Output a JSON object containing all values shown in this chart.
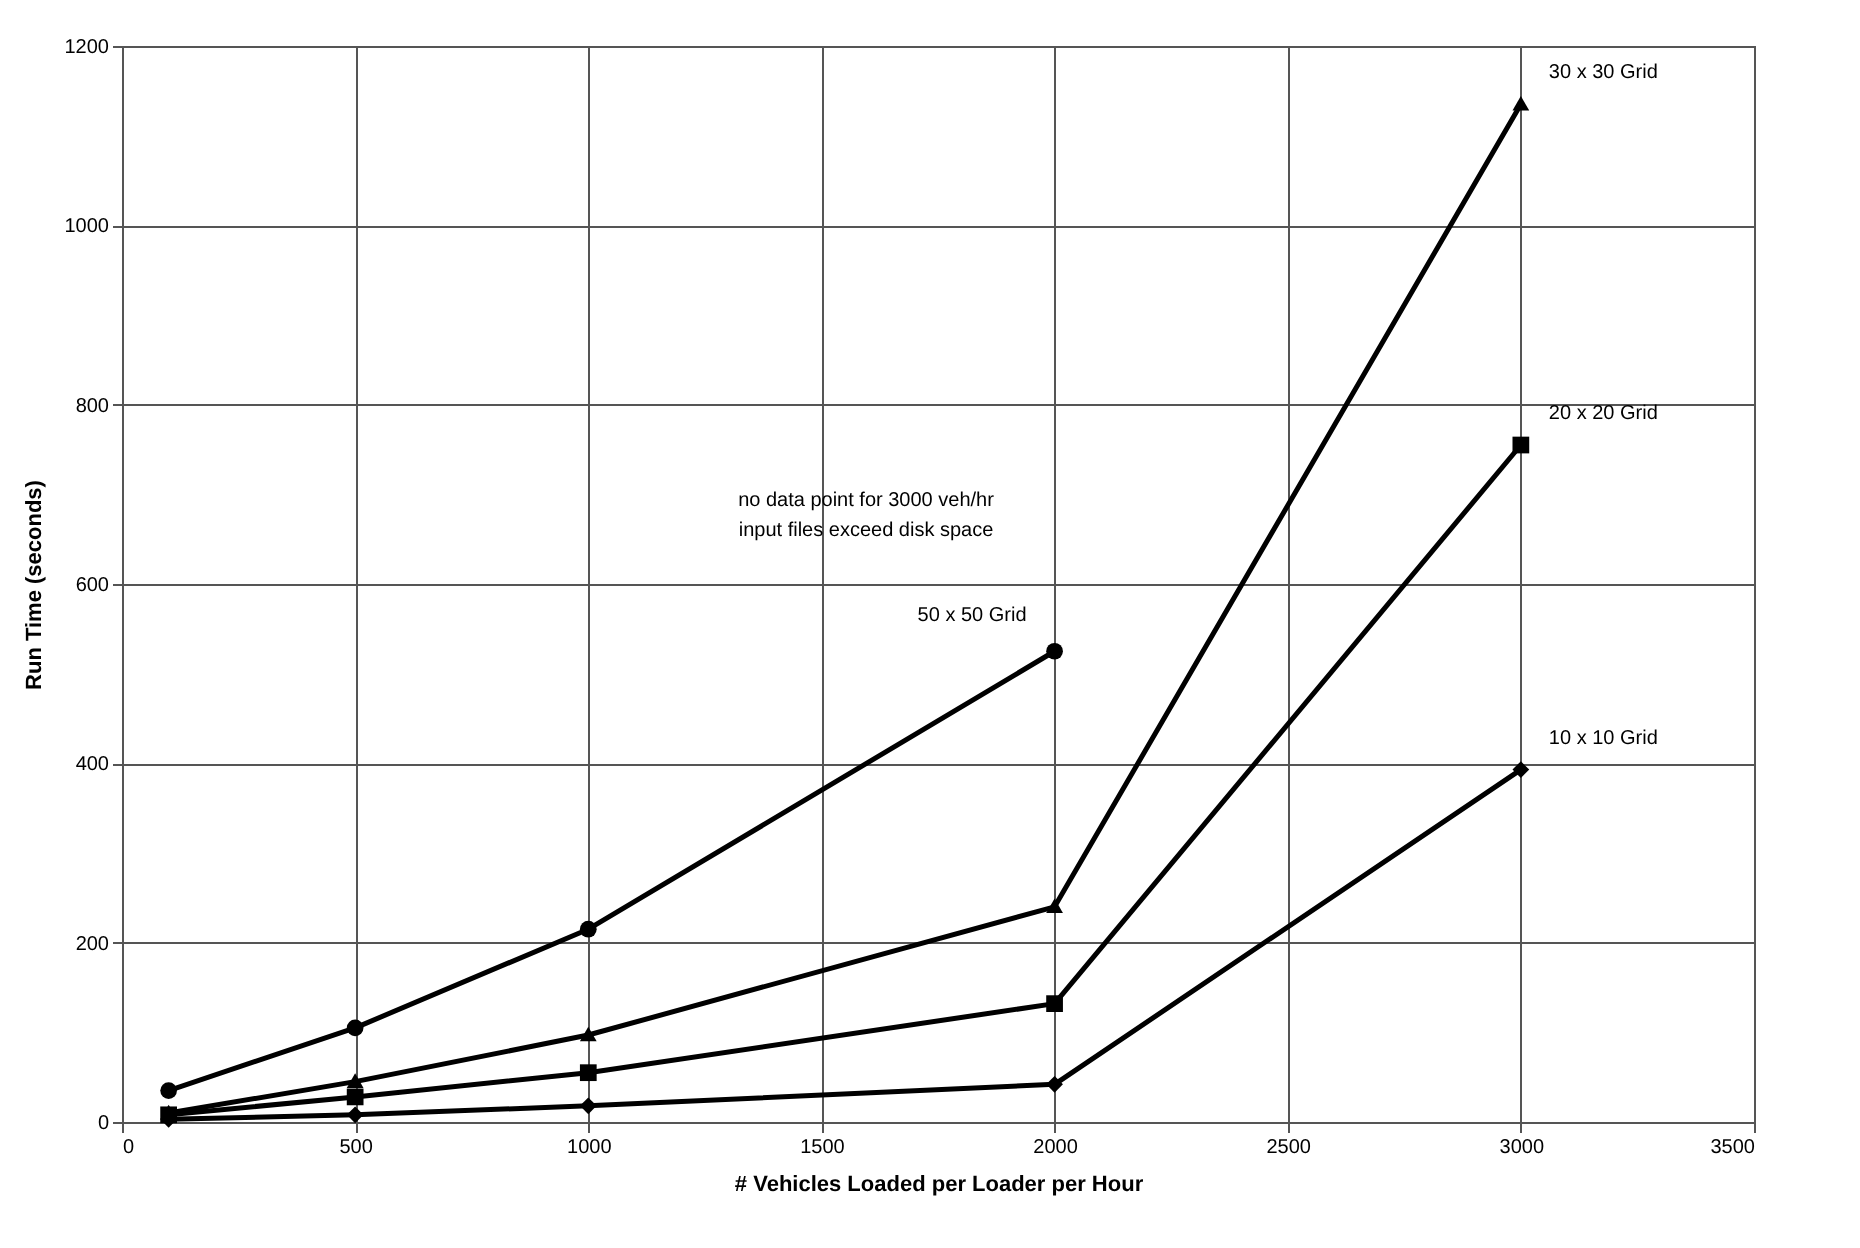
{
  "chart_data": {
    "type": "line",
    "xlabel": "# Vehicles Loaded per Loader per Hour",
    "ylabel": "Run Time (seconds)",
    "xlim": [
      0,
      3500
    ],
    "xticks": [
      0,
      500,
      1000,
      1500,
      2000,
      2500,
      3000,
      3500
    ],
    "ylim": [
      0,
      1200
    ],
    "yticks": [
      0,
      200,
      400,
      600,
      800,
      1000,
      1200
    ],
    "grid": true,
    "legend": false,
    "line_style": "solid",
    "annotations": [
      "no data point for 3000 veh/hr\ninput files exceed disk space"
    ],
    "series": [
      {
        "name": "50 x 50 Grid",
        "color": "#000000",
        "marker": "circle",
        "x": [
          100,
          500,
          1000,
          2000
        ],
        "values": [
          35,
          105,
          215,
          525
        ]
      },
      {
        "name": "30 x 30 Grid",
        "color": "#000000",
        "marker": "triangle",
        "x": [
          100,
          500,
          1000,
          2000,
          3000
        ],
        "values": [
          10,
          45,
          97,
          240,
          1135
        ]
      },
      {
        "name": "20 x 20 Grid",
        "color": "#000000",
        "marker": "square",
        "x": [
          100,
          500,
          1000,
          2000,
          3000
        ],
        "values": [
          8,
          28,
          55,
          132,
          755
        ]
      },
      {
        "name": "10 x 10 Grid",
        "color": "#000000",
        "marker": "diamond",
        "x": [
          100,
          500,
          1000,
          2000,
          3000
        ],
        "values": [
          3,
          8,
          18,
          42,
          393
        ]
      }
    ]
  }
}
